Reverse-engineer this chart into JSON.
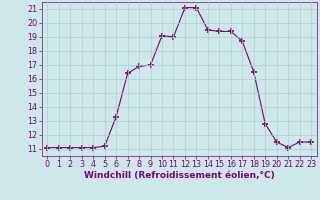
{
  "x": [
    0,
    1,
    2,
    3,
    4,
    5,
    6,
    7,
    8,
    9,
    10,
    11,
    12,
    13,
    14,
    15,
    16,
    17,
    18,
    19,
    20,
    21,
    22,
    23
  ],
  "y": [
    11.1,
    11.1,
    11.1,
    11.1,
    11.1,
    11.2,
    13.3,
    16.4,
    16.9,
    17.0,
    19.1,
    19.0,
    21.1,
    21.1,
    19.5,
    19.4,
    19.4,
    18.7,
    16.5,
    12.8,
    11.5,
    11.1,
    11.5,
    11.5
  ],
  "line_color": "#800080",
  "marker": "+",
  "marker_size": 4,
  "bg_color": "#cce8e8",
  "grid_color": "#b0cccc",
  "xlabel": "Windchill (Refroidissement éolien,°C)",
  "xlim": [
    -0.5,
    23.5
  ],
  "ylim": [
    10.5,
    21.5
  ],
  "yticks": [
    11,
    12,
    13,
    14,
    15,
    16,
    17,
    18,
    19,
    20,
    21
  ],
  "xticks": [
    0,
    1,
    2,
    3,
    4,
    5,
    6,
    7,
    8,
    9,
    10,
    11,
    12,
    13,
    14,
    15,
    16,
    17,
    18,
    19,
    20,
    21,
    22,
    23
  ],
  "label_fontsize": 6.5,
  "tick_fontsize": 5.8
}
